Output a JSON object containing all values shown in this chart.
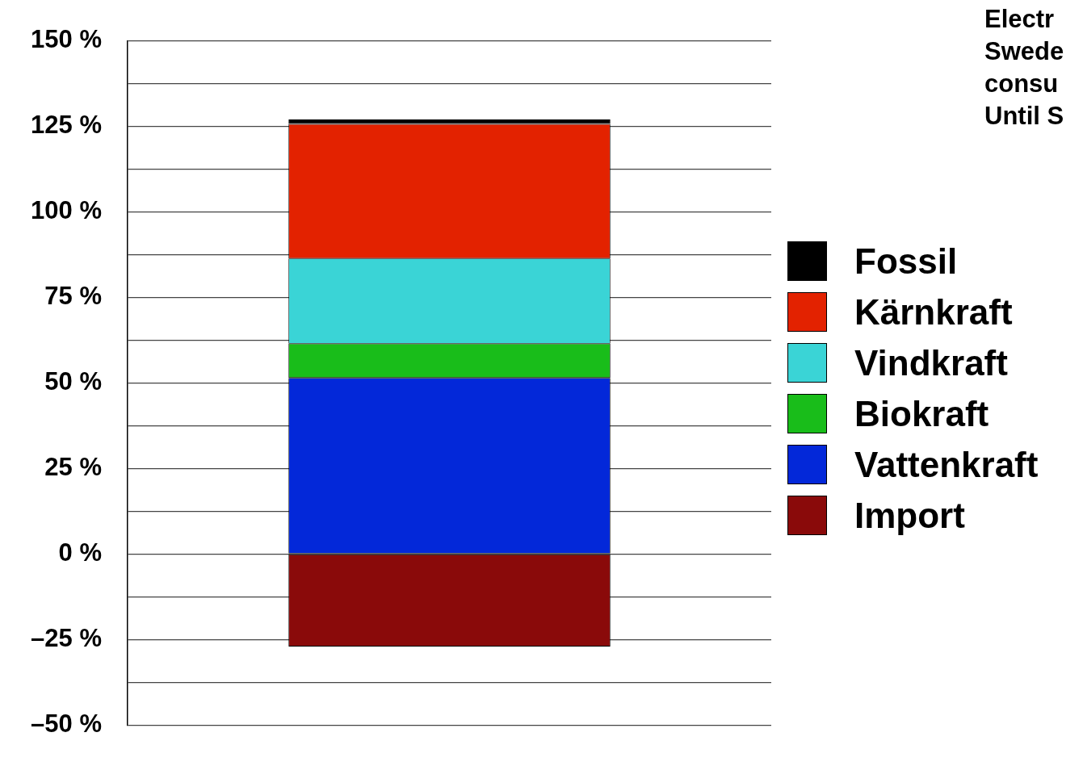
{
  "chart_data": {
    "type": "bar",
    "stacked": true,
    "categories": [
      null
    ],
    "series": [
      {
        "name": "Vattenkraft",
        "color": "#0328d9",
        "values": [
          51.5
        ]
      },
      {
        "name": "Biokraft",
        "color": "#19bd1a",
        "values": [
          10.0
        ]
      },
      {
        "name": "Vindkraft",
        "color": "#3ad4d6",
        "values": [
          24.9
        ]
      },
      {
        "name": "Kärnkraft",
        "color": "#e32200",
        "values": [
          39.3
        ]
      },
      {
        "name": "Fossil",
        "color": "#000000",
        "values": [
          1.3
        ]
      },
      {
        "name": "Import",
        "color": "#8a0a0a",
        "values": [
          -27
        ]
      }
    ],
    "ylim": [
      -50,
      150
    ],
    "yticks": [
      {
        "value": -50,
        "label": "–50 %"
      },
      {
        "value": -37.5,
        "label": null
      },
      {
        "value": -25,
        "label": "–25 %"
      },
      {
        "value": -12.5,
        "label": null
      },
      {
        "value": 0,
        "label": "0 %"
      },
      {
        "value": 12.5,
        "label": null
      },
      {
        "value": 25,
        "label": "25 %"
      },
      {
        "value": 37.5,
        "label": null
      },
      {
        "value": 50,
        "label": "50 %"
      },
      {
        "value": 62.5,
        "label": null
      },
      {
        "value": 75,
        "label": "75 %"
      },
      {
        "value": 87.5,
        "label": null
      },
      {
        "value": 100,
        "label": "100 %"
      },
      {
        "value": 112.5,
        "label": null
      },
      {
        "value": 125,
        "label": "125 %"
      },
      {
        "value": 137.5,
        "label": null
      },
      {
        "value": 150,
        "label": "150 %"
      }
    ],
    "grid": true,
    "legend": "right",
    "annotations": [
      "Electr",
      "Swede",
      "consu",
      "Until S"
    ]
  }
}
